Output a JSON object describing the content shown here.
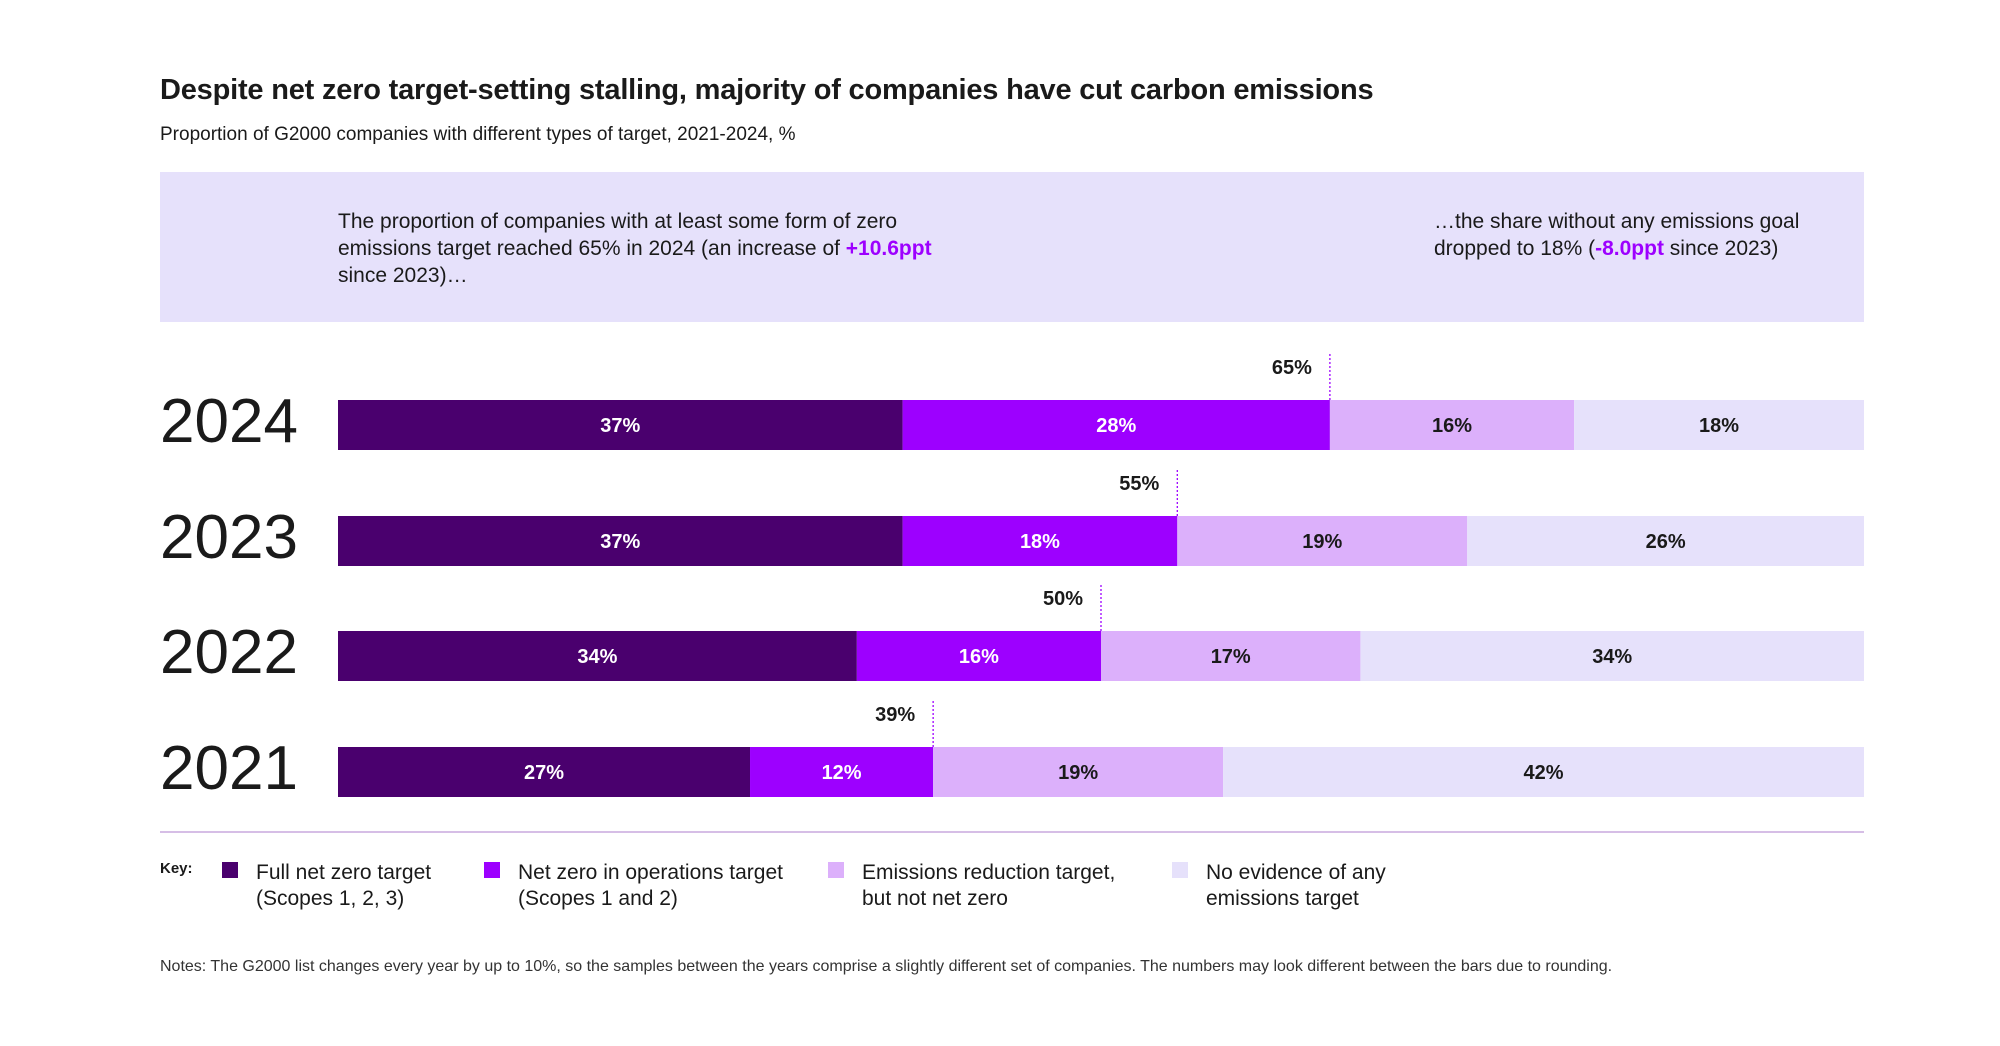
{
  "title": "Despite net zero target-setting stalling, majority of companies have cut carbon emissions",
  "subtitle": "Proportion of G2000 companies with different types of target, 2021-2024, %",
  "callouts": {
    "left": {
      "pre": "The proportion of companies with at least some form of zero emissions target reached 65% in 2024 (an increase of ",
      "highlight": "+10.6ppt",
      "post": " since 2023)…"
    },
    "right": {
      "pre": "…the share without any emissions goal dropped to 18% (",
      "highlight": "-8.0ppt",
      "post": " since 2023)"
    }
  },
  "chart_data": {
    "type": "bar",
    "orientation": "horizontal",
    "stacked": true,
    "categories": [
      "2024",
      "2023",
      "2022",
      "2021"
    ],
    "series": [
      {
        "name": "Full net zero target (Scopes 1, 2, 3)",
        "values": [
          37,
          37,
          34,
          27
        ],
        "labels": [
          "37%",
          "37%",
          "34%",
          "27%"
        ],
        "color": "#4a006e",
        "label_color": "#ffffff"
      },
      {
        "name": "Net zero in operations target (Scopes 1 and 2)",
        "values": [
          28,
          18,
          16,
          12
        ],
        "labels": [
          "28%",
          "18%",
          "16%",
          "12%"
        ],
        "color": "#9d00ff",
        "label_color": "#ffffff"
      },
      {
        "name": "Emissions reduction target, but not net zero",
        "values": [
          16,
          19,
          17,
          19
        ],
        "labels": [
          "16%",
          "19%",
          "17%",
          "19%"
        ],
        "color": "#dcb0fb",
        "label_color": "#1a1a1a"
      },
      {
        "name": "No evidence of any emissions target",
        "values": [
          18,
          26,
          34,
          42
        ],
        "labels": [
          "18%",
          "26%",
          "34%",
          "42%"
        ],
        "color": "#e6e1fb",
        "label_color": "#1a1a1a"
      }
    ],
    "totals": [
      {
        "value": 65,
        "label": "65%"
      },
      {
        "value": 55,
        "label": "55%"
      },
      {
        "value": 50,
        "label": "50%"
      },
      {
        "value": 39,
        "label": "39%"
      }
    ],
    "xlim": [
      0,
      100
    ],
    "grid": false,
    "legend_position": "bottom-left"
  },
  "legend": {
    "key_label": "Key:",
    "items": [
      {
        "line1": "Full net zero target",
        "line2": "(Scopes 1, 2, 3)",
        "color": "#4a006e"
      },
      {
        "line1": "Net zero in operations target",
        "line2": "(Scopes 1 and 2)",
        "color": "#9d00ff"
      },
      {
        "line1": "Emissions reduction target,",
        "line2": "but not net zero",
        "color": "#dcb0fb"
      },
      {
        "line1": "No evidence of any",
        "line2": "emissions target",
        "color": "#e6e1fb"
      }
    ]
  },
  "notes": "Notes: The G2000 list changes every year by up to 10%, so the samples between the years comprise a slightly different set of companies. The numbers may look different between the bars due to rounding."
}
